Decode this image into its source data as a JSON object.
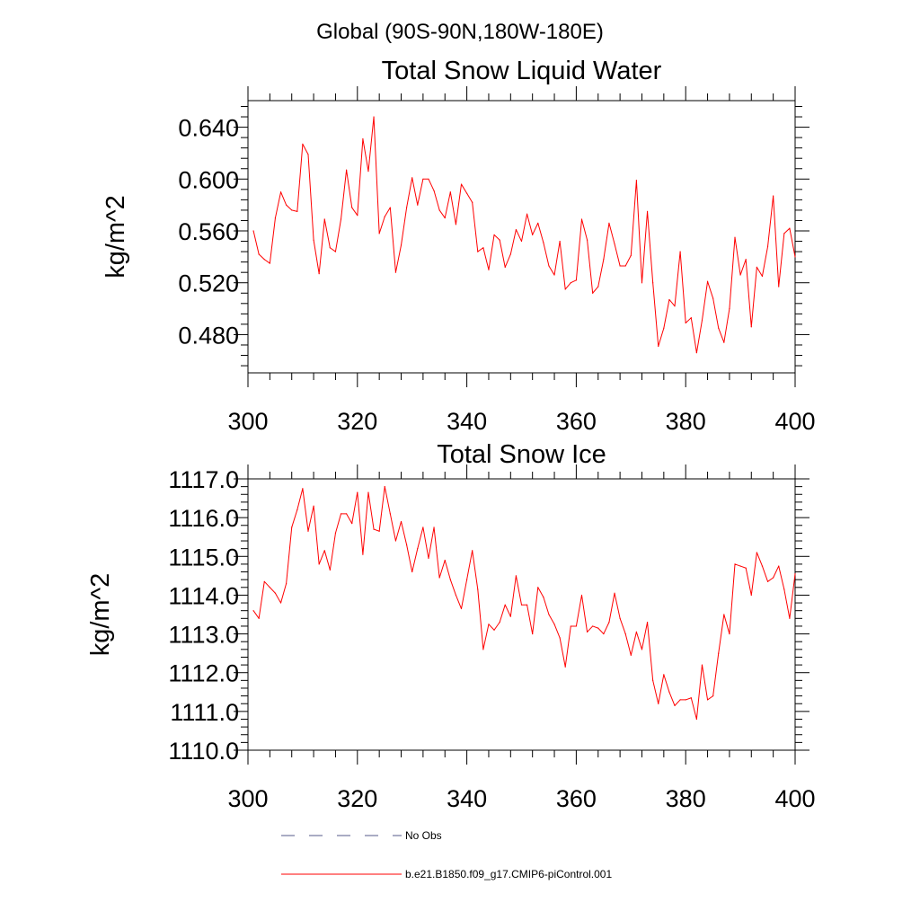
{
  "figure": {
    "suptitle": "Global (90S-90N,180W-180E)"
  },
  "chart_data": [
    {
      "type": "line",
      "title": "Total Snow Liquid Water",
      "xlabel": "",
      "ylabel": "kg/m^2",
      "xlim": [
        300,
        400
      ],
      "ylim": [
        0.4505,
        0.6605
      ],
      "xticks": [
        300,
        320,
        340,
        360,
        380,
        400
      ],
      "xtick_labels": [
        "300",
        "320",
        "340",
        "360",
        "380",
        "400"
      ],
      "yticks": [
        0.48,
        0.52,
        0.56,
        0.6,
        0.64
      ],
      "ytick_labels": [
        "0.480",
        "0.520",
        "0.560",
        "0.600",
        "0.640"
      ],
      "series": [
        {
          "name": "b.e21.B1850.f09_g17.CMIP6-piControl.001",
          "color": "#ff0000",
          "x_start": 301,
          "values": [
            0.56,
            0.542,
            0.538,
            0.535,
            0.57,
            0.59,
            0.58,
            0.576,
            0.575,
            0.627,
            0.619,
            0.553,
            0.527,
            0.569,
            0.547,
            0.544,
            0.569,
            0.607,
            0.578,
            0.572,
            0.631,
            0.606,
            0.648,
            0.558,
            0.571,
            0.578,
            0.528,
            0.549,
            0.578,
            0.601,
            0.58,
            0.6,
            0.6,
            0.591,
            0.576,
            0.57,
            0.59,
            0.565,
            0.596,
            0.589,
            0.582,
            0.544,
            0.547,
            0.53,
            0.557,
            0.553,
            0.532,
            0.542,
            0.561,
            0.552,
            0.573,
            0.557,
            0.566,
            0.551,
            0.533,
            0.526,
            0.552,
            0.515,
            0.52,
            0.522,
            0.569,
            0.553,
            0.512,
            0.517,
            0.538,
            0.566,
            0.55,
            0.533,
            0.533,
            0.541,
            0.599,
            0.52,
            0.575,
            0.52,
            0.471,
            0.485,
            0.507,
            0.502,
            0.544,
            0.489,
            0.493,
            0.466,
            0.491,
            0.521,
            0.508,
            0.485,
            0.474,
            0.5,
            0.555,
            0.526,
            0.538,
            0.486,
            0.532,
            0.525,
            0.548,
            0.587,
            0.517,
            0.558,
            0.562,
            0.54
          ]
        }
      ]
    },
    {
      "type": "line",
      "title": "Total Snow Ice",
      "xlabel": "",
      "ylabel": "kg/m^2",
      "xlim": [
        300,
        400
      ],
      "ylim": [
        1110.0,
        1117.0
      ],
      "xticks": [
        300,
        320,
        340,
        360,
        380,
        400
      ],
      "xtick_labels": [
        "300",
        "320",
        "340",
        "360",
        "380",
        "400"
      ],
      "yticks": [
        1110,
        1111,
        1112,
        1113,
        1114,
        1115,
        1116,
        1117
      ],
      "ytick_labels": [
        "1110.0",
        "1111.0",
        "1112.0",
        "1113.0",
        "1114.0",
        "1115.0",
        "1116.0",
        "1117.0"
      ],
      "series": [
        {
          "name": "b.e21.B1850.f09_g17.CMIP6-piControl.001",
          "color": "#ff0000",
          "x_start": 301,
          "values": [
            1113.6,
            1113.4,
            1114.35,
            1114.2,
            1114.05,
            1113.8,
            1114.3,
            1115.75,
            1116.2,
            1116.75,
            1115.65,
            1116.3,
            1114.8,
            1115.15,
            1114.65,
            1115.6,
            1116.1,
            1116.1,
            1115.85,
            1116.65,
            1115.05,
            1116.65,
            1115.7,
            1115.65,
            1116.8,
            1116.1,
            1115.4,
            1115.9,
            1115.3,
            1114.6,
            1115.2,
            1115.75,
            1114.95,
            1115.75,
            1114.45,
            1114.9,
            1114.4,
            1114.0,
            1113.65,
            1114.4,
            1115.15,
            1114.15,
            1112.6,
            1113.25,
            1113.1,
            1113.3,
            1113.75,
            1113.45,
            1114.5,
            1113.75,
            1113.75,
            1113.0,
            1114.2,
            1113.95,
            1113.5,
            1113.25,
            1112.9,
            1112.15,
            1113.2,
            1113.2,
            1114.0,
            1113.05,
            1113.2,
            1113.15,
            1113.0,
            1113.3,
            1114.05,
            1113.4,
            1113.0,
            1112.45,
            1113.05,
            1112.6,
            1113.3,
            1111.8,
            1111.2,
            1111.95,
            1111.5,
            1111.15,
            1111.3,
            1111.3,
            1111.35,
            1110.8,
            1112.2,
            1111.3,
            1111.4,
            1112.5,
            1113.5,
            1113.0,
            1114.8,
            1114.75,
            1114.7,
            1114.0,
            1115.1,
            1114.75,
            1114.35,
            1114.45,
            1114.75,
            1114.15,
            1113.4,
            1114.55
          ]
        }
      ]
    }
  ],
  "legend": {
    "items": [
      {
        "label": "No Obs",
        "color": "#555a8a",
        "style": "dashed"
      },
      {
        "label": "b.e21.B1850.f09_g17.CMIP6-piControl.001",
        "color": "#ff0000",
        "style": "solid"
      }
    ]
  }
}
